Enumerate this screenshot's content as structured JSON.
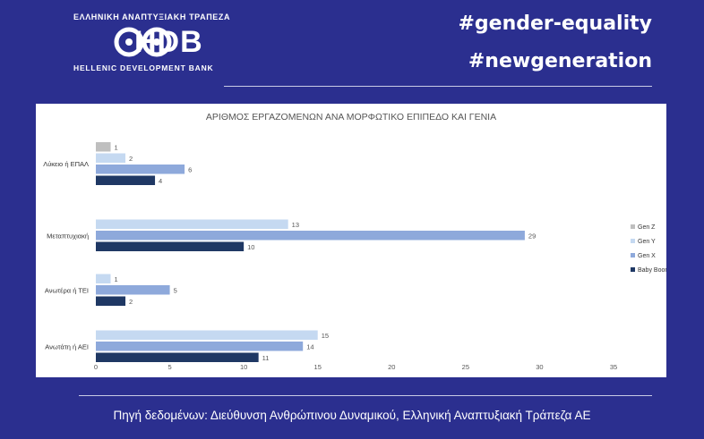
{
  "header": {
    "bank_name_greek": "ΕΛΛΗΝΙΚΗ ΑΝΑΠΤΥΞΙΑΚΗ ΤΡΑΠΕΖΑ",
    "logo_text": "HDB",
    "bank_name_english": "HELLENIC DEVELOPMENT BANK",
    "hashtag_1": "#gender-equality",
    "hashtag_2": "#newgeneration"
  },
  "footer": {
    "source": "Πηγή δεδομένων: Διεύθυνση Ανθρώπινου Δυναμικού, Ελληνική Αναπτυξιακή Τράπεζα ΑΕ"
  },
  "colors": {
    "background": "#2b2f8f",
    "gen_z": "#bfbfbf",
    "gen_y": "#c5d9f1",
    "gen_x": "#8ea9db",
    "baby_boomer": "#1f3864"
  },
  "chart_data": {
    "type": "bar",
    "orientation": "horizontal",
    "title": "ΑΡΙΘΜΟΣ ΕΡΓΑΖΟΜΕΝΩΝ ΑΝΑ ΜΟΡΦΩΤΙΚΟ ΕΠΙΠΕΔΟ ΚΑΙ ΓΕΝΙΑ",
    "categories": [
      "Λύκειο ή ΕΠΑΛ",
      "Μεταπτυχιακή",
      "Ανωτέρα ή ΤΕΙ",
      "Ανωτάτη ή ΑΕΙ"
    ],
    "series": [
      {
        "name": "Gen Z",
        "values": [
          1,
          null,
          null,
          null
        ],
        "color": "#bfbfbf"
      },
      {
        "name": "Gen Y",
        "values": [
          2,
          13,
          1,
          15
        ],
        "color": "#c5d9f1"
      },
      {
        "name": "Gen X",
        "values": [
          6,
          29,
          5,
          14
        ],
        "color": "#8ea9db"
      },
      {
        "name": "Baby Boomer",
        "values": [
          4,
          10,
          2,
          11
        ],
        "color": "#1f3864"
      }
    ],
    "xlim": [
      0,
      35
    ],
    "xticks": [
      0,
      5,
      10,
      15,
      20,
      25,
      30,
      35
    ],
    "grid": false,
    "legend_position": "right"
  }
}
